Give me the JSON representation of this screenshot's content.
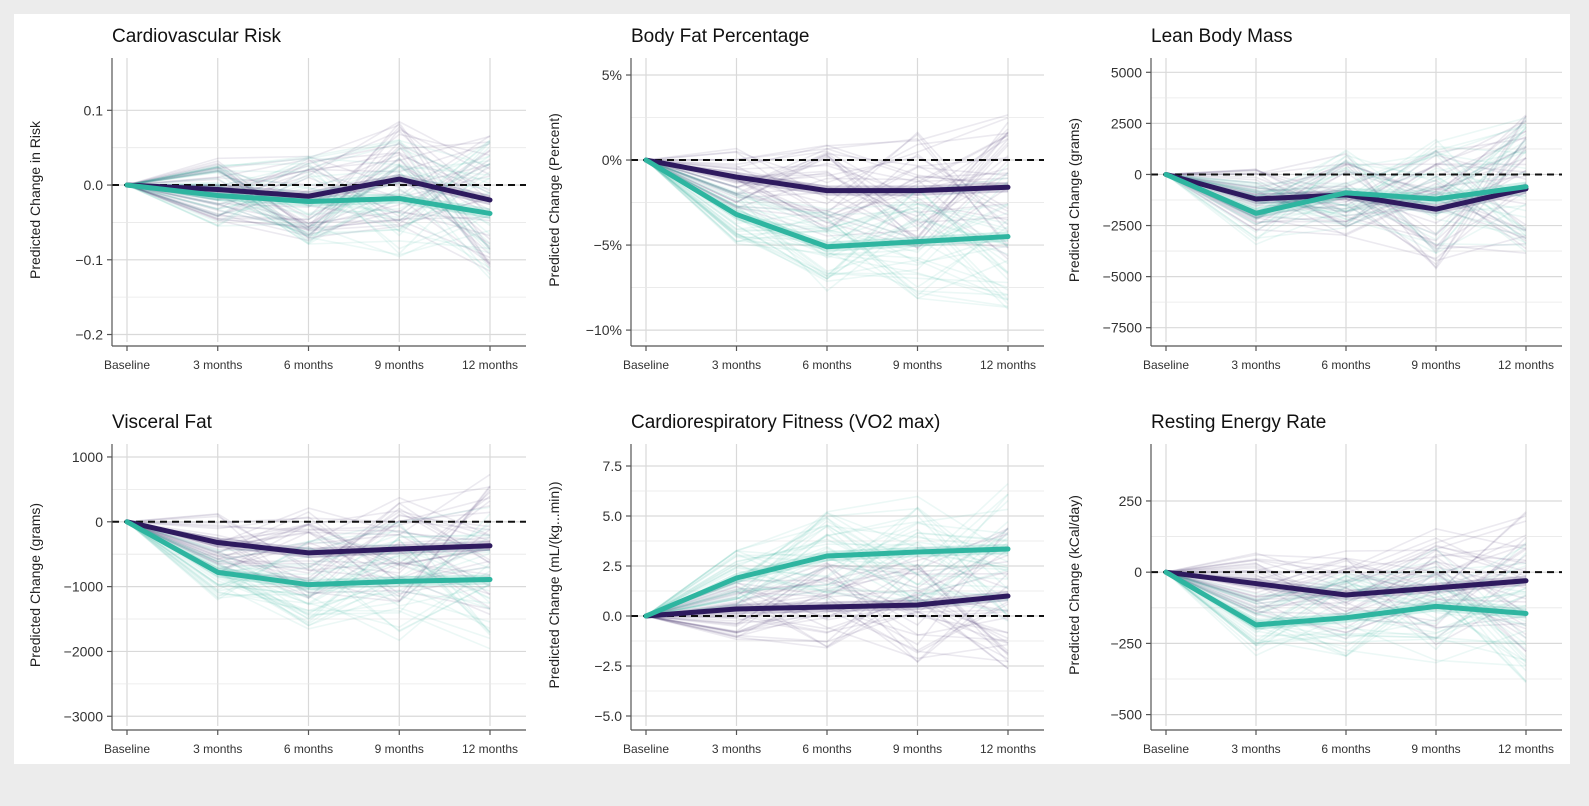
{
  "colors": {
    "group_a": "#2e1a5e",
    "group_b": "#2eb5a0",
    "grid": "#d9d9d9",
    "axis": "#555555",
    "zero_line": "#111111"
  },
  "chart_data": [
    {
      "type": "line",
      "title": "Cardiovascular Risk",
      "ylabel": "Predicted Change in Risk",
      "categories": [
        "Baseline",
        "3 months",
        "6 months",
        "9 months",
        "12 months"
      ],
      "ylim": [
        -0.21,
        0.17
      ],
      "yticks": [
        0.1,
        0.0,
        -0.1,
        -0.2
      ],
      "ytick_labels": [
        "0.1",
        "0.0",
        "−0.1",
        "−0.2"
      ],
      "zero_line": 0,
      "series": [
        {
          "values": [
            0,
            -0.006,
            -0.015,
            0.008,
            -0.02
          ]
        },
        {
          "values": [
            0,
            -0.014,
            -0.022,
            -0.018,
            -0.038
          ]
        }
      ]
    },
    {
      "type": "line",
      "title": "Body Fat Percentage",
      "ylabel": "Predicted Change (Percent)",
      "categories": [
        "Baseline",
        "3 months",
        "6 months",
        "9 months",
        "12 months"
      ],
      "ylim": [
        -10.7,
        6.0
      ],
      "yticks": [
        5,
        0,
        -5,
        -10
      ],
      "ytick_labels": [
        "5%",
        "0%",
        "−5%",
        "−10%"
      ],
      "zero_line": 0,
      "series": [
        {
          "values": [
            0,
            -1.0,
            -1.8,
            -1.8,
            -1.6
          ]
        },
        {
          "values": [
            0,
            -3.2,
            -5.1,
            -4.8,
            -4.5
          ]
        }
      ]
    },
    {
      "type": "line",
      "title": "Lean Body Mass",
      "ylabel": "Predicted Change (grams)",
      "categories": [
        "Baseline",
        "3 months",
        "6 months",
        "9 months",
        "12 months"
      ],
      "ylim": [
        -8200,
        5700
      ],
      "yticks": [
        5000,
        2500,
        0,
        -2500,
        -5000,
        -7500
      ],
      "ytick_labels": [
        "5000",
        "2500",
        "0",
        "−2500",
        "−5000",
        "−7500"
      ],
      "zero_line": 0,
      "series": [
        {
          "values": [
            0,
            -1200,
            -1000,
            -1700,
            -700
          ]
        },
        {
          "values": [
            0,
            -1900,
            -900,
            -1200,
            -600
          ]
        }
      ]
    },
    {
      "type": "line",
      "title": "Visceral Fat",
      "ylabel": "Predicted Change (grams)",
      "categories": [
        "Baseline",
        "3 months",
        "6 months",
        "9 months",
        "12 months"
      ],
      "ylim": [
        -3150,
        1200
      ],
      "yticks": [
        1000,
        0,
        -1000,
        -2000,
        -3000
      ],
      "ytick_labels": [
        "1000",
        "0",
        "−1000",
        "−2000",
        "−3000"
      ],
      "zero_line": 0,
      "series": [
        {
          "values": [
            0,
            -320,
            -480,
            -420,
            -370
          ]
        },
        {
          "values": [
            0,
            -780,
            -970,
            -920,
            -890
          ]
        }
      ]
    },
    {
      "type": "line",
      "title": "Cardiorespiratory Fitness (VO2 max)",
      "ylabel": "Predicted Change (mL/(kg...min))",
      "categories": [
        "Baseline",
        "3 months",
        "6 months",
        "9 months",
        "12 months"
      ],
      "ylim": [
        -5.5,
        8.6
      ],
      "yticks": [
        7.5,
        5.0,
        2.5,
        0.0,
        -2.5,
        -5.0
      ],
      "ytick_labels": [
        "7.5",
        "5.0",
        "2.5",
        "0.0",
        "−2.5",
        "−5.0"
      ],
      "zero_line": 0,
      "series": [
        {
          "values": [
            0,
            0.35,
            0.45,
            0.55,
            1.0
          ]
        },
        {
          "values": [
            0,
            1.9,
            3.0,
            3.2,
            3.35
          ]
        }
      ]
    },
    {
      "type": "line",
      "title": "Resting Energy Rate",
      "ylabel": "Predicted Change (kCal/day)",
      "categories": [
        "Baseline",
        "3 months",
        "6 months",
        "9 months",
        "12 months"
      ],
      "ylim": [
        -540,
        450
      ],
      "yticks": [
        250,
        0,
        -250,
        -500
      ],
      "ytick_labels": [
        "250",
        "0",
        "−250",
        "−500"
      ],
      "zero_line": 0,
      "series": [
        {
          "values": [
            0,
            -40,
            -80,
            -55,
            -30
          ]
        },
        {
          "values": [
            0,
            -185,
            -160,
            -120,
            -145
          ]
        }
      ]
    }
  ]
}
